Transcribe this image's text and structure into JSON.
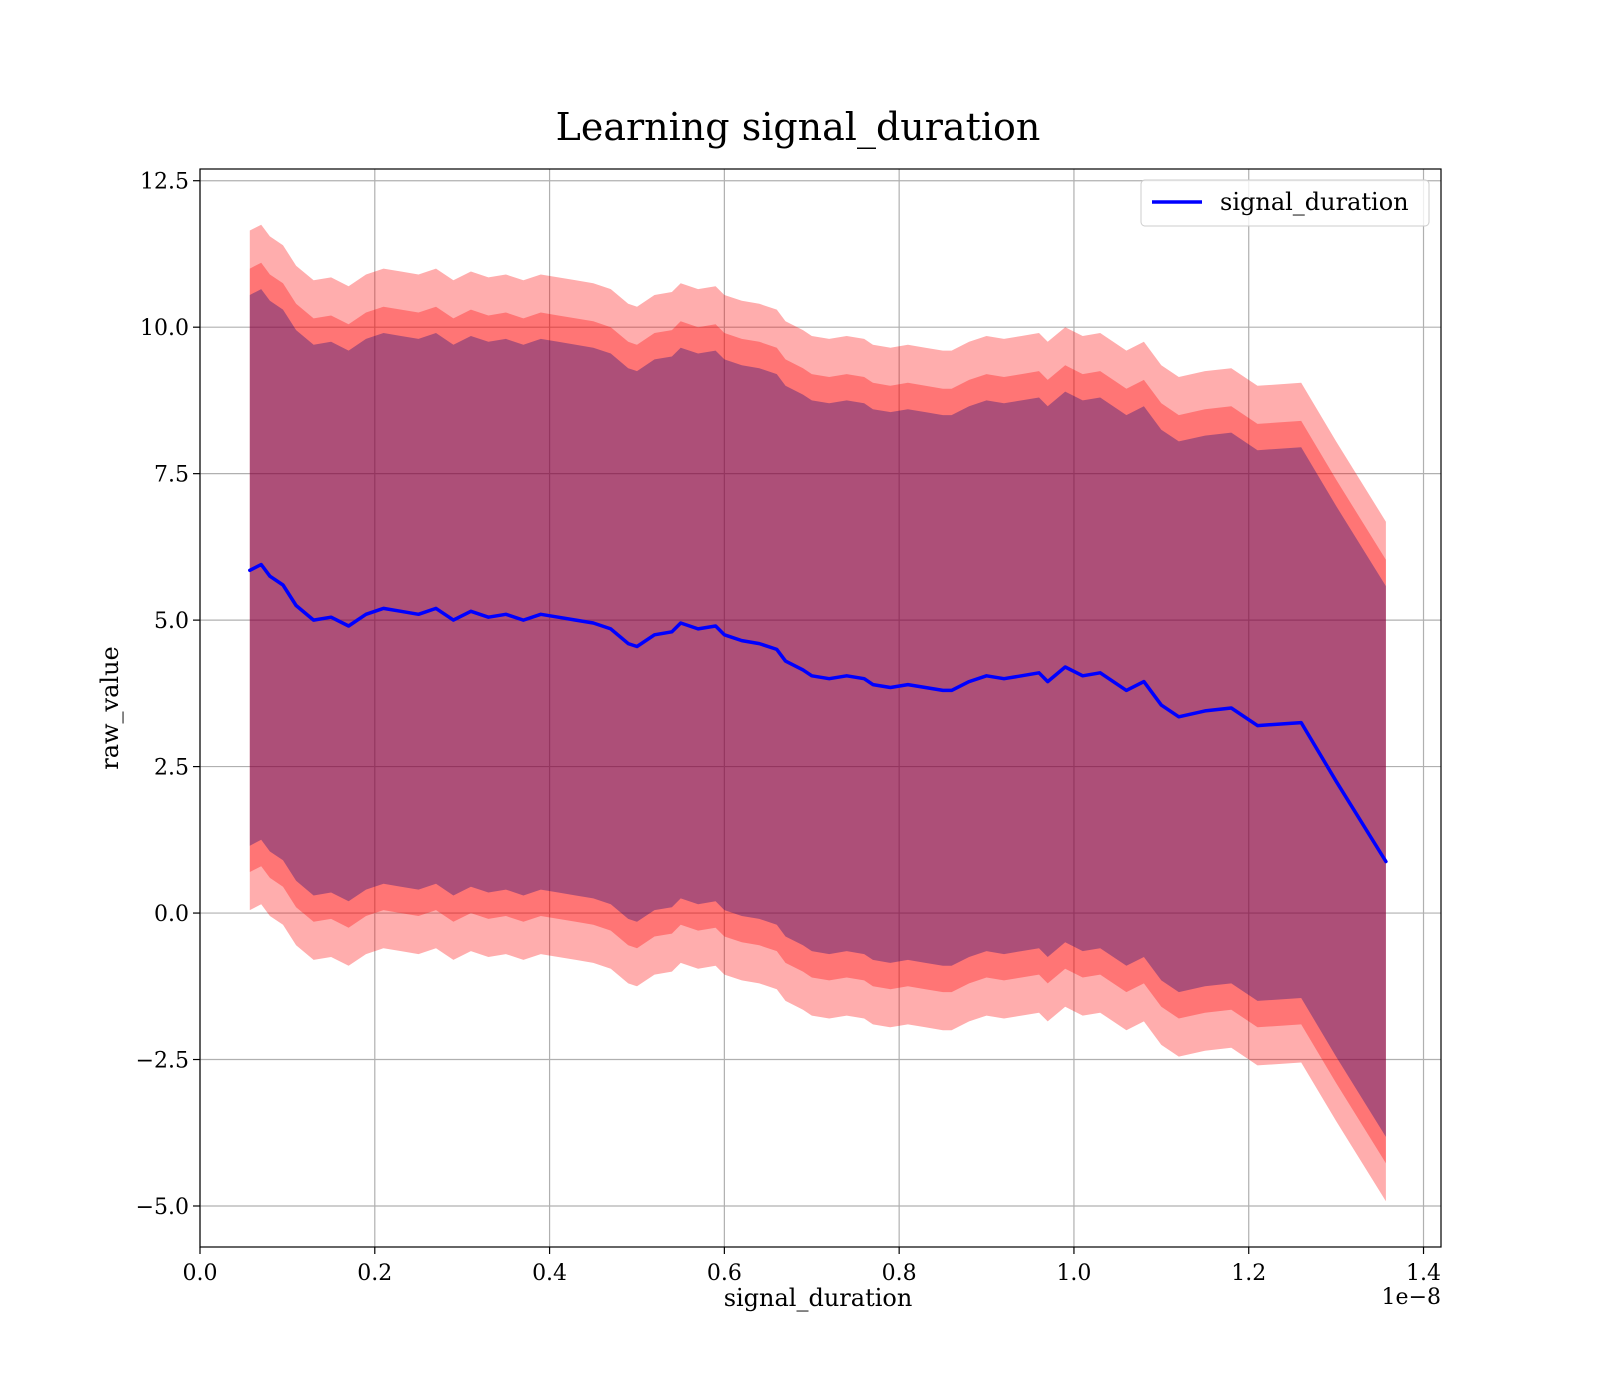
{
  "chart_data": {
    "type": "line",
    "title": "Learning signal_duration",
    "xlabel": "signal_duration",
    "ylabel": "raw_value",
    "x_offset_label": "1e−8",
    "xlim": [
      0.0,
      1.42
    ],
    "ylim": [
      -5.7,
      12.7
    ],
    "x_ticks": [
      0.0,
      0.2,
      0.4,
      0.6,
      0.8,
      1.0,
      1.2,
      1.4
    ],
    "x_tick_labels": [
      "0.0",
      "0.2",
      "0.4",
      "0.6",
      "0.8",
      "1.0",
      "1.2",
      "1.4"
    ],
    "y_ticks": [
      -5.0,
      -2.5,
      0.0,
      2.5,
      5.0,
      7.5,
      10.0,
      12.5
    ],
    "y_tick_labels": [
      "−5.0",
      "−2.5",
      "0.0",
      "2.5",
      "5.0",
      "7.5",
      "10.0",
      "12.5"
    ],
    "grid": true,
    "legend_position": "top-right",
    "series": [
      {
        "name": "signal_duration",
        "color": "#0000ff",
        "x": [
          0.057,
          0.07,
          0.08,
          0.095,
          0.11,
          0.13,
          0.15,
          0.17,
          0.19,
          0.21,
          0.23,
          0.25,
          0.27,
          0.29,
          0.31,
          0.33,
          0.35,
          0.37,
          0.39,
          0.41,
          0.43,
          0.45,
          0.47,
          0.49,
          0.5,
          0.52,
          0.54,
          0.55,
          0.57,
          0.59,
          0.6,
          0.62,
          0.64,
          0.66,
          0.67,
          0.69,
          0.7,
          0.72,
          0.74,
          0.76,
          0.77,
          0.79,
          0.81,
          0.83,
          0.85,
          0.86,
          0.88,
          0.9,
          0.92,
          0.94,
          0.96,
          0.97,
          0.99,
          1.01,
          1.03,
          1.06,
          1.08,
          1.1,
          1.12,
          1.15,
          1.18,
          1.21,
          1.26,
          1.3,
          1.357
        ],
        "values": [
          5.85,
          5.95,
          5.75,
          5.6,
          5.25,
          5.0,
          5.05,
          4.9,
          5.1,
          5.2,
          5.15,
          5.1,
          5.2,
          5.0,
          5.15,
          5.05,
          5.1,
          5.0,
          5.1,
          5.05,
          5.0,
          4.95,
          4.85,
          4.6,
          4.55,
          4.75,
          4.8,
          4.95,
          4.85,
          4.9,
          4.75,
          4.65,
          4.6,
          4.5,
          4.3,
          4.15,
          4.05,
          4.0,
          4.05,
          4.0,
          3.9,
          3.85,
          3.9,
          3.85,
          3.8,
          3.8,
          3.95,
          4.05,
          4.0,
          4.05,
          4.1,
          3.95,
          4.2,
          4.05,
          4.1,
          3.8,
          3.95,
          3.55,
          3.35,
          3.45,
          3.5,
          3.2,
          3.25,
          2.25,
          0.88
        ]
      }
    ],
    "bands": [
      {
        "color": "#ff0000",
        "opacity": 0.32,
        "half_width": 5.8
      },
      {
        "color": "#ff0000",
        "opacity": 0.32,
        "half_width": 5.15
      },
      {
        "color": "#000080",
        "opacity": 0.32,
        "half_width": 4.7
      }
    ]
  }
}
